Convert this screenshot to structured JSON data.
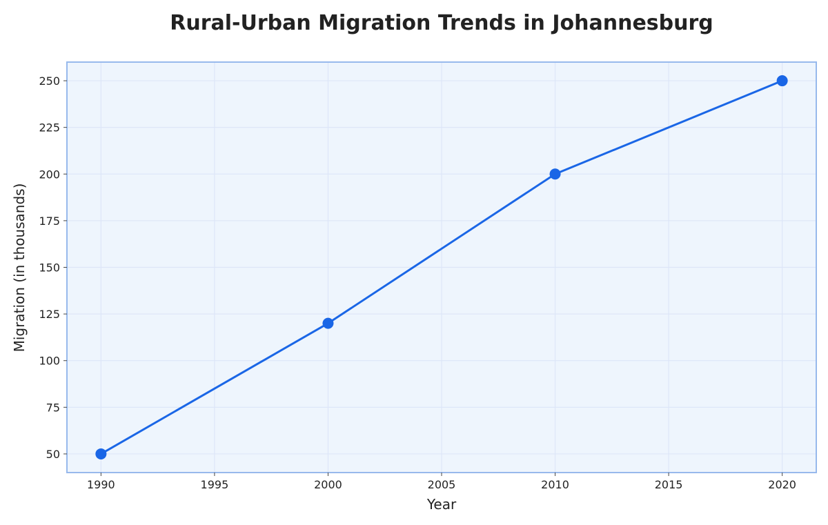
{
  "chart_data": {
    "type": "line",
    "title": "Rural-Urban Migration Trends in Johannesburg",
    "xlabel": "Year",
    "ylabel": "Migration (in thousands)",
    "x": [
      1990,
      2000,
      2010,
      2020
    ],
    "series": [
      {
        "values": [
          50,
          120,
          200,
          250
        ]
      }
    ],
    "xlim": [
      1988.5,
      2021.5
    ],
    "ylim": [
      40,
      260
    ],
    "xticks": [
      1990,
      1995,
      2000,
      2005,
      2010,
      2015,
      2020
    ],
    "yticks": [
      50,
      75,
      100,
      125,
      150,
      175,
      200,
      225,
      250
    ],
    "grid": true,
    "legend": "none",
    "colors": {
      "line": "#1a66e6",
      "plot_background": "#eef5fd",
      "plot_border": "#97b9ec",
      "grid": "#dde6f8"
    }
  }
}
